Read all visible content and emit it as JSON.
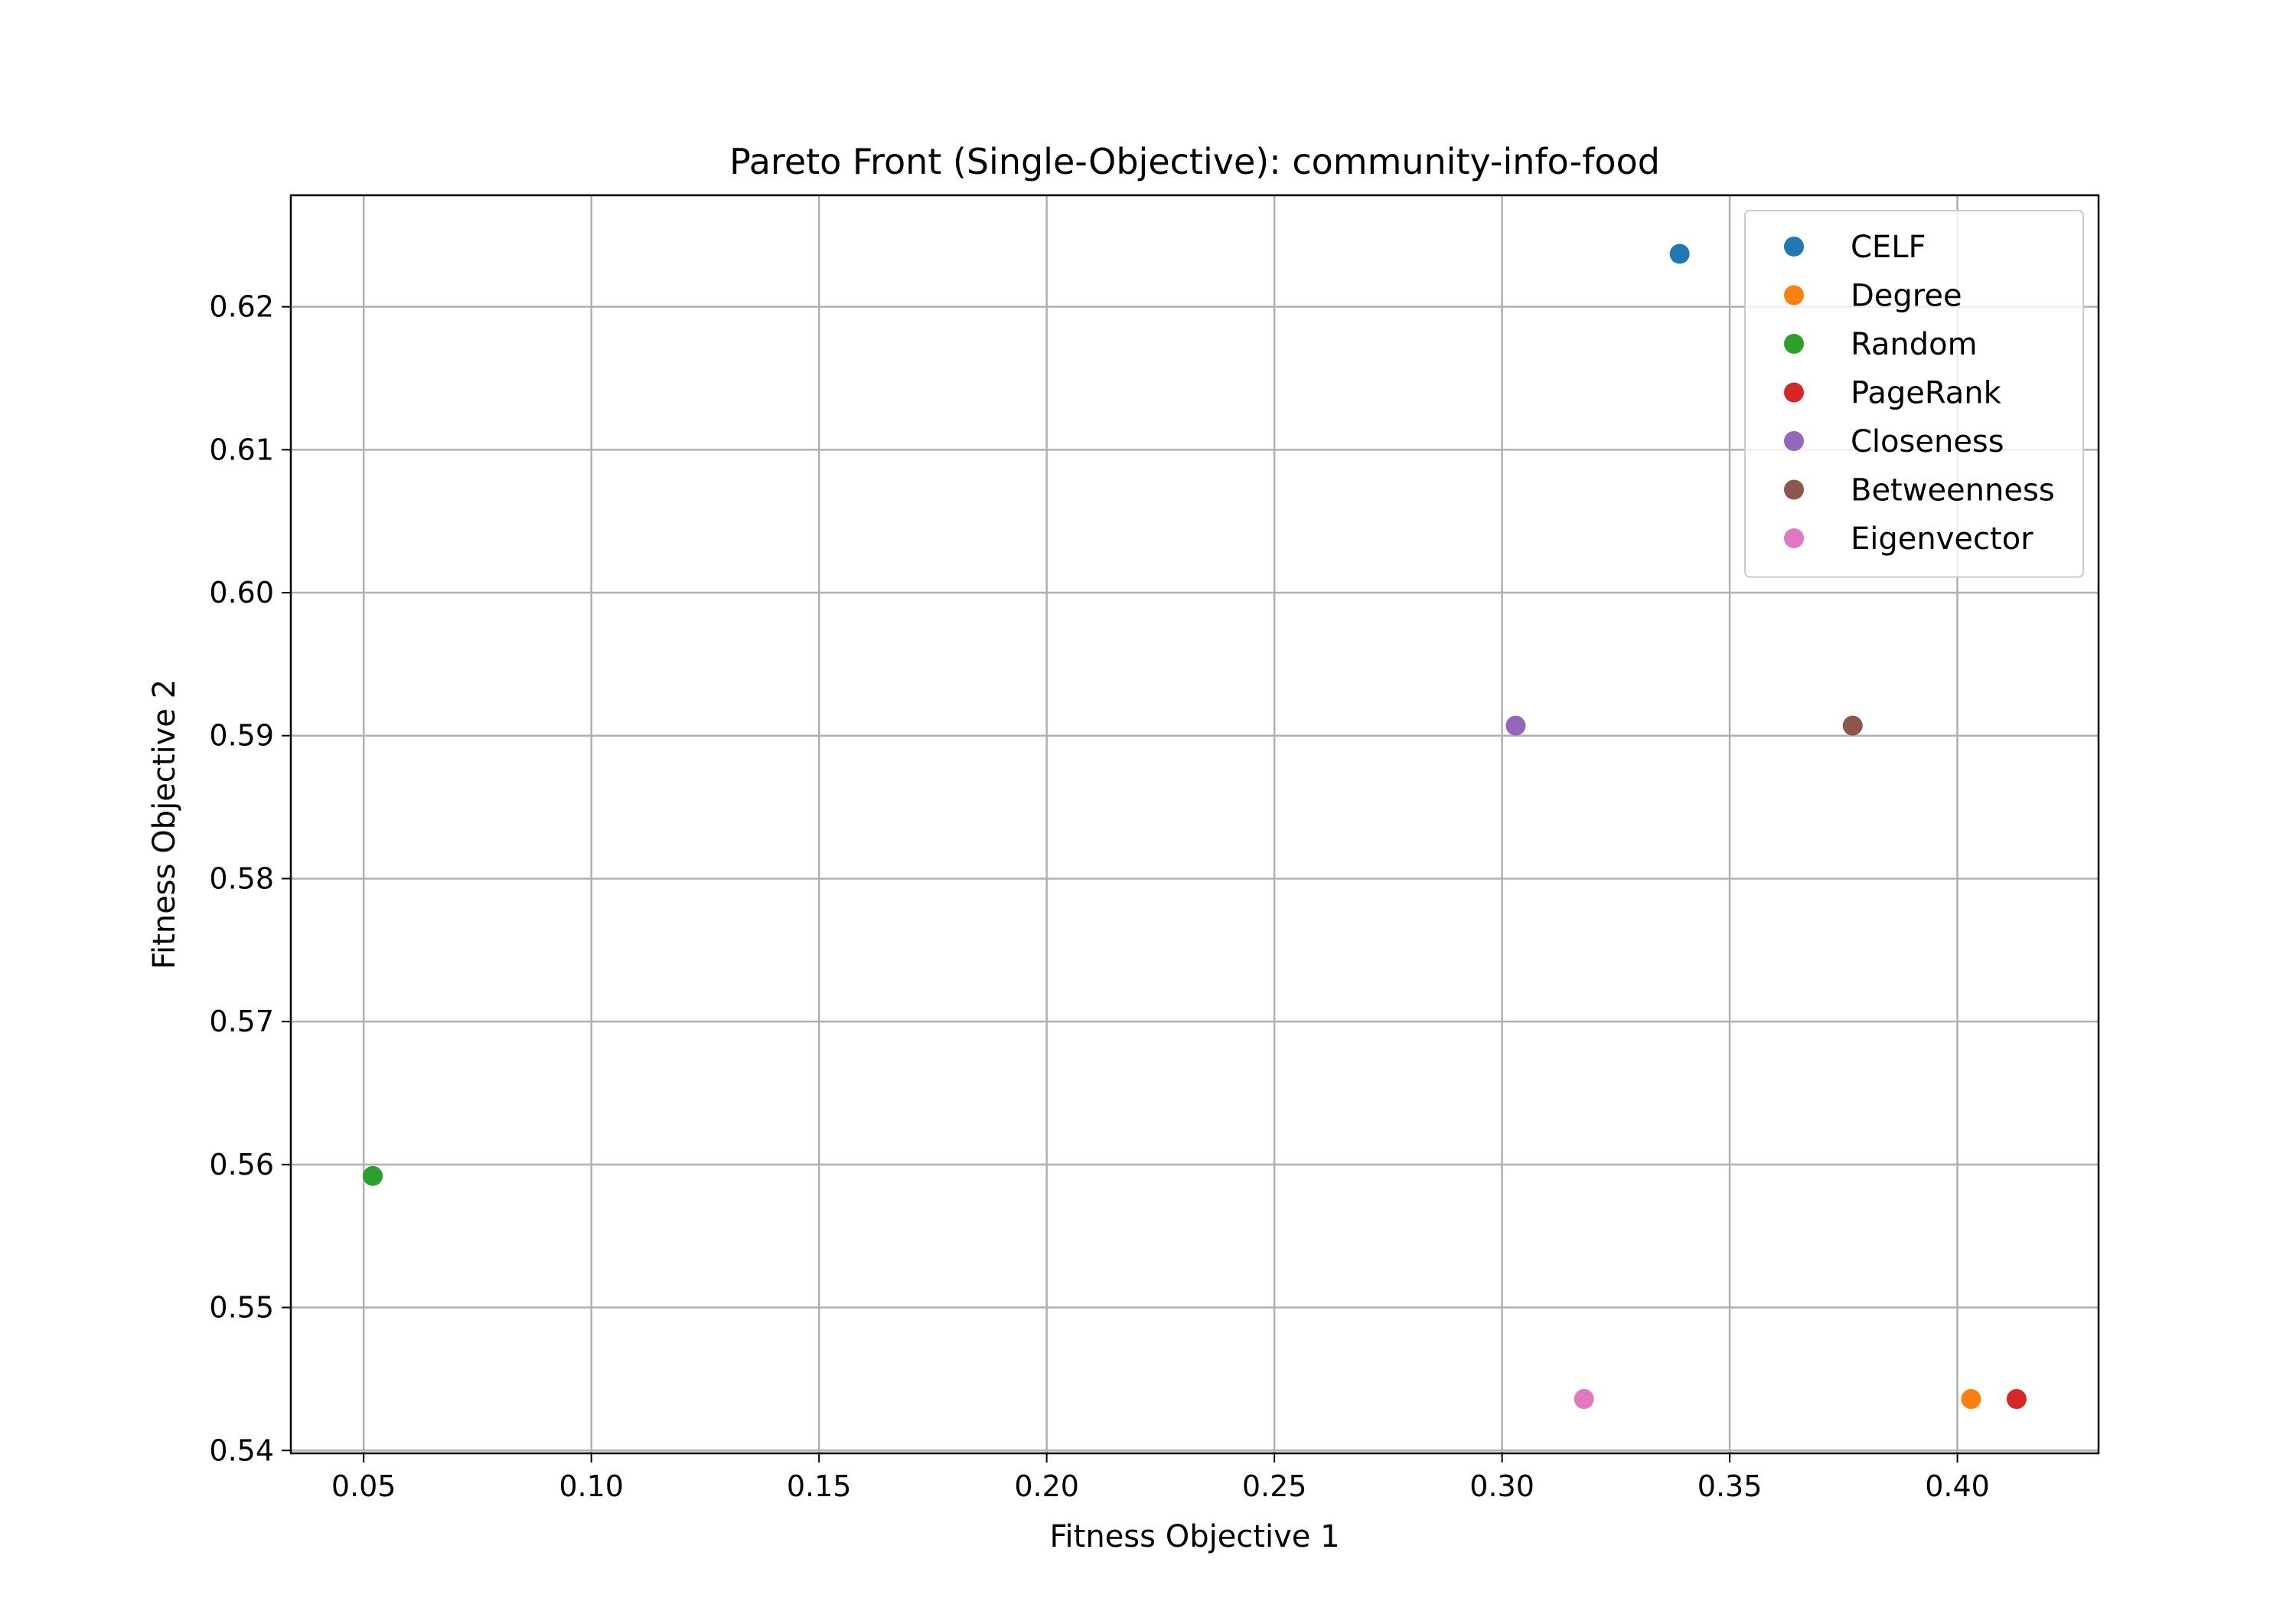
{
  "chart_data": {
    "type": "scatter",
    "title": "Pareto Front (Single-Objective): community-info-food",
    "xlabel": "Fitness Objective 1",
    "ylabel": "Fitness Objective 2",
    "xlim": [
      0.034,
      0.431
    ],
    "ylim": [
      0.5398,
      0.6278
    ],
    "xticks": [
      0.05,
      0.1,
      0.15,
      0.2,
      0.25,
      0.3,
      0.35,
      0.4
    ],
    "xtick_labels": [
      "0.05",
      "0.10",
      "0.15",
      "0.20",
      "0.25",
      "0.30",
      "0.35",
      "0.40"
    ],
    "yticks": [
      0.54,
      0.55,
      0.56,
      0.57,
      0.58,
      0.59,
      0.6,
      0.61,
      0.62
    ],
    "ytick_labels": [
      "0.54",
      "0.55",
      "0.56",
      "0.57",
      "0.58",
      "0.59",
      "0.60",
      "0.61",
      "0.62"
    ],
    "grid": true,
    "legend_position": "top-right",
    "series": [
      {
        "name": "CELF",
        "color": "#1f77b4",
        "points": [
          [
            0.339,
            0.6237
          ]
        ]
      },
      {
        "name": "Degree",
        "color": "#ff7f0e",
        "points": [
          [
            0.403,
            0.5436
          ]
        ]
      },
      {
        "name": "Random",
        "color": "#2ca02c",
        "points": [
          [
            0.052,
            0.5592
          ]
        ]
      },
      {
        "name": "PageRank",
        "color": "#d62728",
        "points": [
          [
            0.413,
            0.5436
          ]
        ]
      },
      {
        "name": "Closeness",
        "color": "#9467bd",
        "points": [
          [
            0.303,
            0.5907
          ]
        ]
      },
      {
        "name": "Betweenness",
        "color": "#8c564b",
        "points": [
          [
            0.377,
            0.5907
          ]
        ]
      },
      {
        "name": "Eigenvector",
        "color": "#e377c2",
        "points": [
          [
            0.318,
            0.5436
          ]
        ]
      }
    ]
  }
}
